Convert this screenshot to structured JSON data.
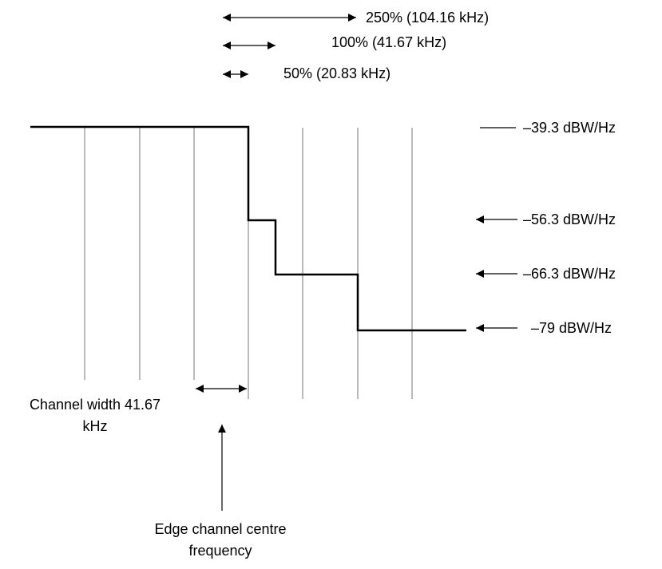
{
  "colors": {
    "background": "#ffffff",
    "stroke": "#000000",
    "grid": "#8c8c8c"
  },
  "bandwidth_scale": {
    "items": [
      {
        "label": "250% (104.16 kHz)",
        "percent": 250,
        "khz": 104.16
      },
      {
        "label": "100% (41.67 kHz)",
        "percent": 100,
        "khz": 41.67
      },
      {
        "label": "50% (20.83 kHz)",
        "percent": 50,
        "khz": 20.83
      }
    ]
  },
  "levels": [
    {
      "label": "–39.3 dBW/Hz",
      "value": -39.3
    },
    {
      "label": "–56.3 dBW/Hz",
      "value": -56.3
    },
    {
      "label": "–66.3 dBW/Hz",
      "value": -66.3
    },
    {
      "label": "–79 dBW/Hz",
      "value": -79
    }
  ],
  "channel_width": {
    "label": "Channel width 41.67 kHz",
    "line1": "Channel width 41.67",
    "line2": "kHz"
  },
  "edge_frequency": {
    "line1": "Edge channel centre",
    "line2": "frequency"
  }
}
